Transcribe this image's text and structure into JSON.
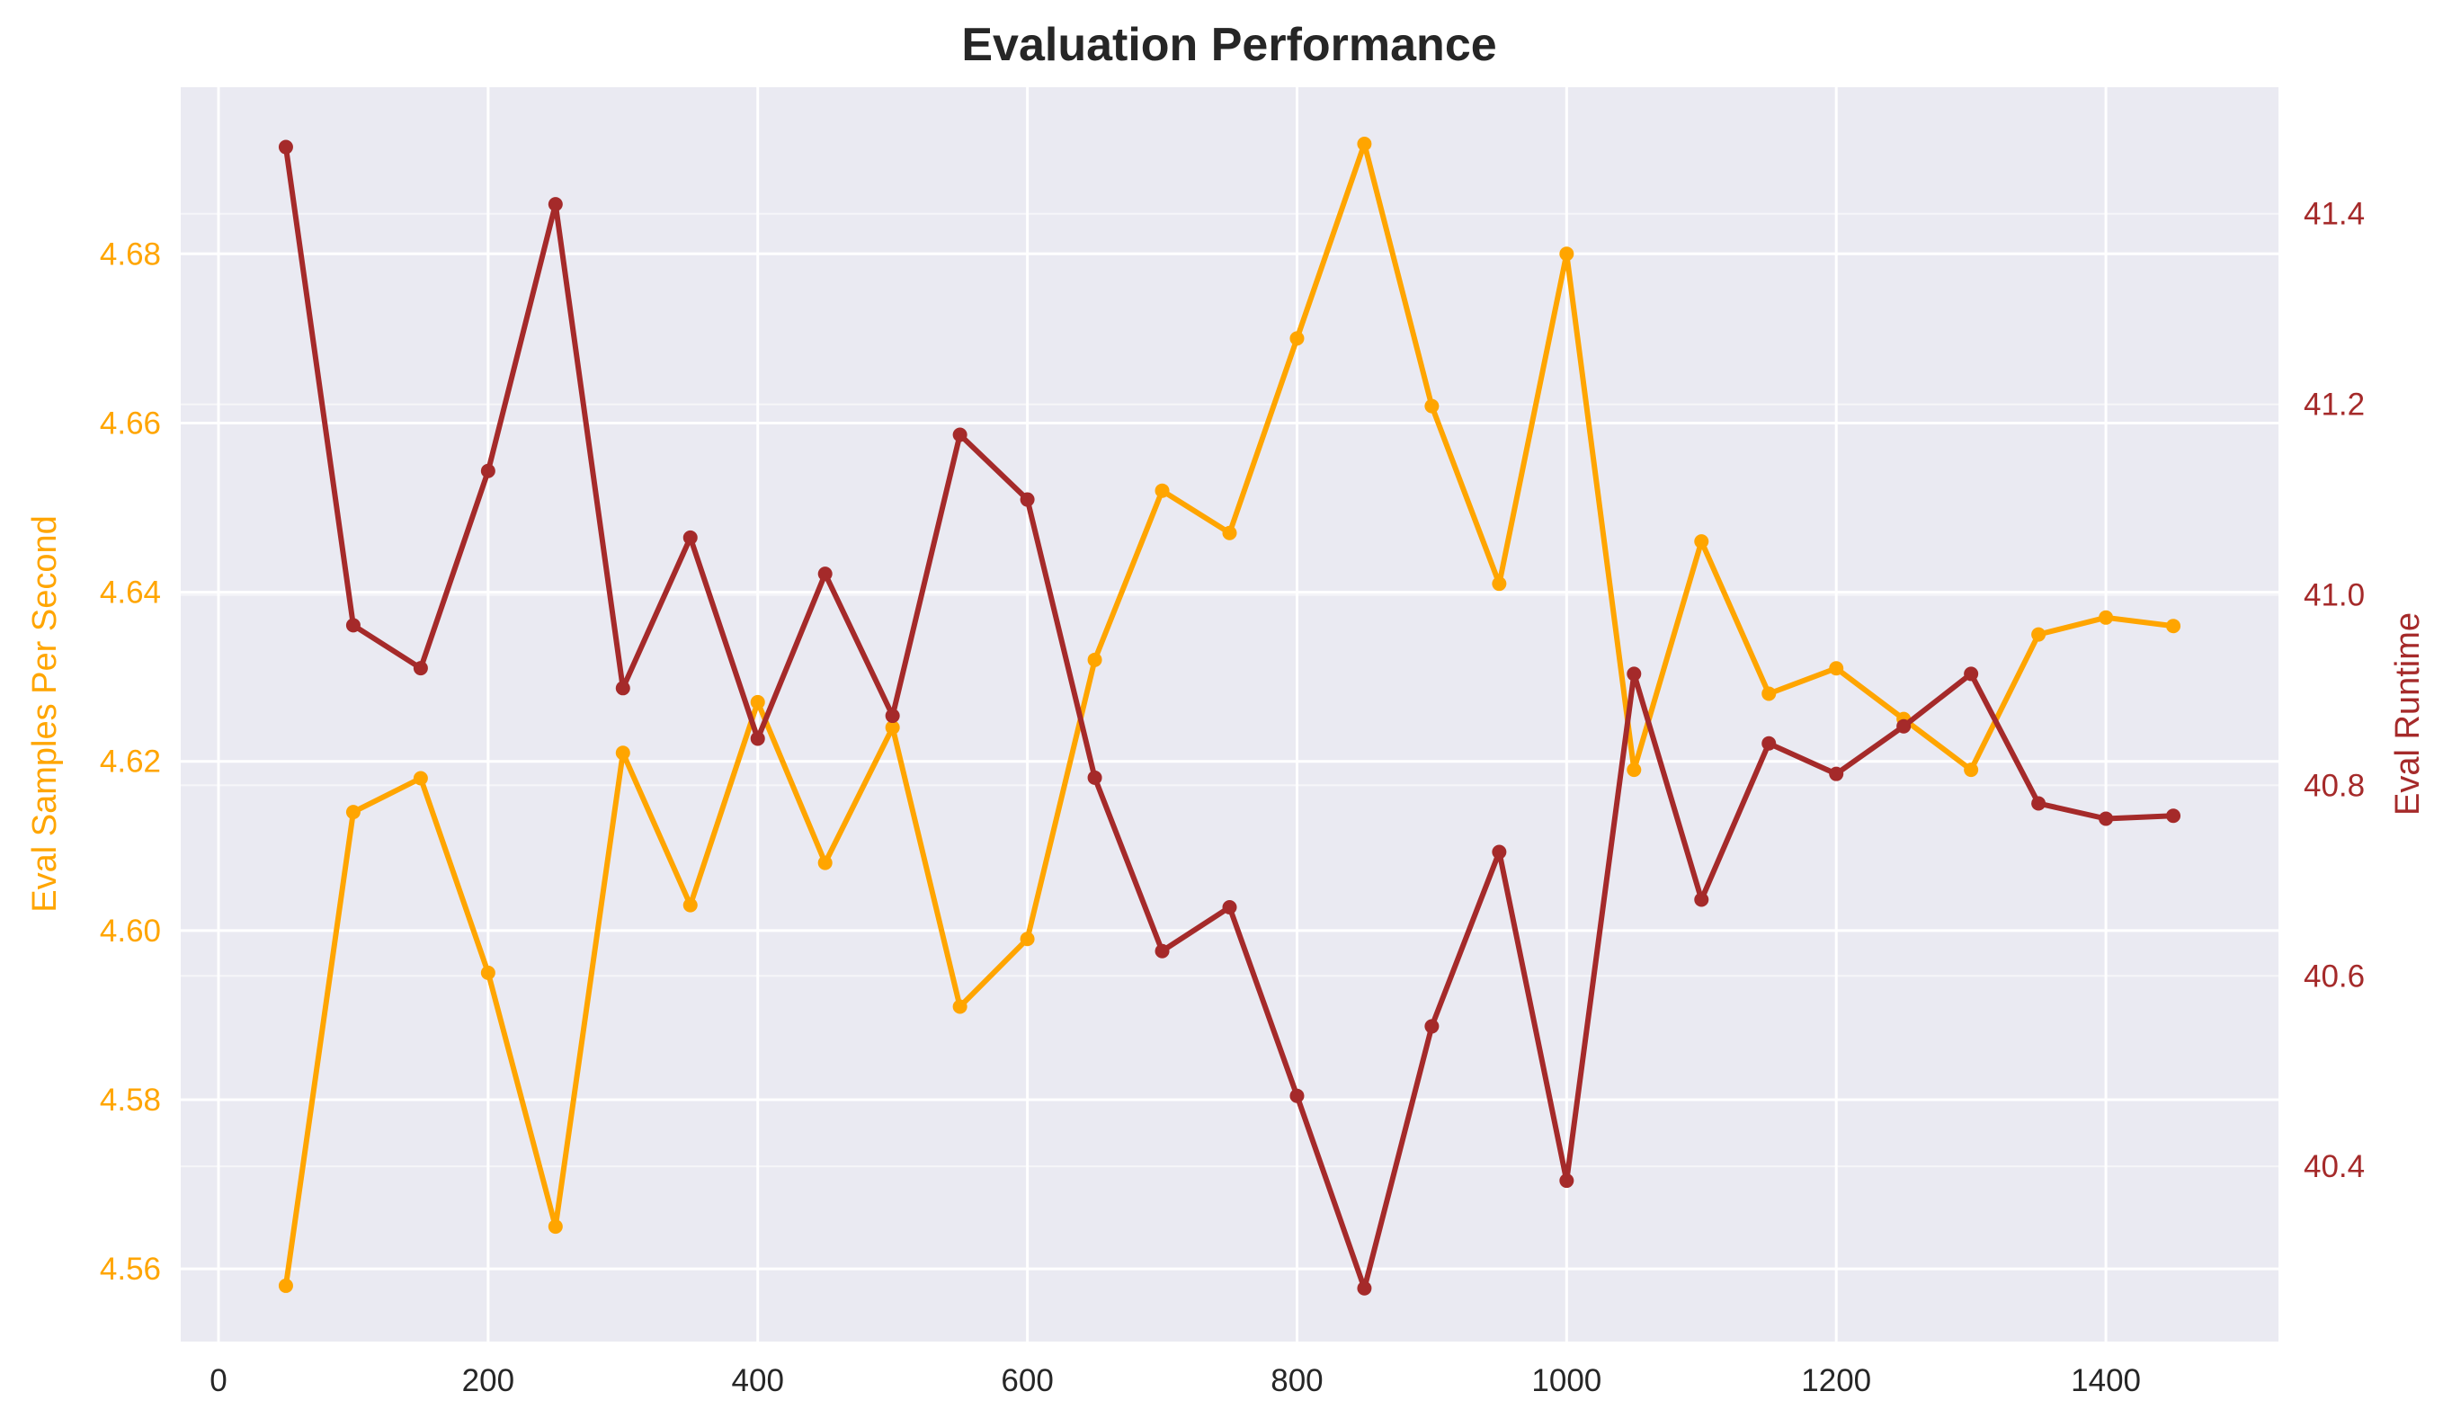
{
  "chart_data": {
    "type": "line",
    "title": "Evaluation Performance",
    "xlabel": "",
    "ylabel_left": "Eval Samples Per Second",
    "ylabel_right": "Eval Runtime",
    "xlim": [
      -28,
      1528
    ],
    "ylim_left": [
      4.5514,
      4.6997
    ],
    "ylim_right": [
      40.2161,
      41.5328
    ],
    "x_ticks": [
      0,
      200,
      400,
      600,
      800,
      1000,
      1200,
      1400
    ],
    "y_ticks_left": [
      4.56,
      4.58,
      4.6,
      4.62,
      4.64,
      4.66,
      4.68
    ],
    "y_ticks_left_labels": [
      "4.56",
      "4.58",
      "4.60",
      "4.62",
      "4.64",
      "4.66",
      "4.68"
    ],
    "y_ticks_right": [
      40.4,
      40.6,
      40.8,
      41.0,
      41.2,
      41.4
    ],
    "y_ticks_right_labels": [
      "40.4",
      "40.6",
      "40.8",
      "41.0",
      "41.2",
      "41.4"
    ],
    "grid": true,
    "x": [
      50,
      100,
      150,
      200,
      250,
      300,
      350,
      400,
      450,
      500,
      550,
      600,
      650,
      700,
      750,
      800,
      850,
      900,
      950,
      1000,
      1050,
      1100,
      1150,
      1200,
      1250,
      1300,
      1350,
      1400,
      1450
    ],
    "series": [
      {
        "axis": "left",
        "color": "#FFA500",
        "values": [
          4.558,
          4.614,
          4.618,
          4.595,
          4.565,
          4.621,
          4.603,
          4.627,
          4.608,
          4.624,
          4.591,
          4.599,
          4.632,
          4.652,
          4.647,
          4.67,
          4.693,
          4.662,
          4.641,
          4.68,
          4.619,
          4.646,
          4.628,
          4.631,
          4.625,
          4.619,
          4.635,
          4.637,
          4.636
        ]
      },
      {
        "axis": "right",
        "color": "#A52A2A",
        "values": [
          41.47,
          40.968,
          40.923,
          41.13,
          41.41,
          40.902,
          41.06,
          40.849,
          41.022,
          40.873,
          41.168,
          41.1,
          40.808,
          40.626,
          40.672,
          40.474,
          40.272,
          40.547,
          40.73,
          40.385,
          40.917,
          40.68,
          40.844,
          40.812,
          40.862,
          40.917,
          40.781,
          40.765,
          40.768
        ]
      }
    ]
  }
}
